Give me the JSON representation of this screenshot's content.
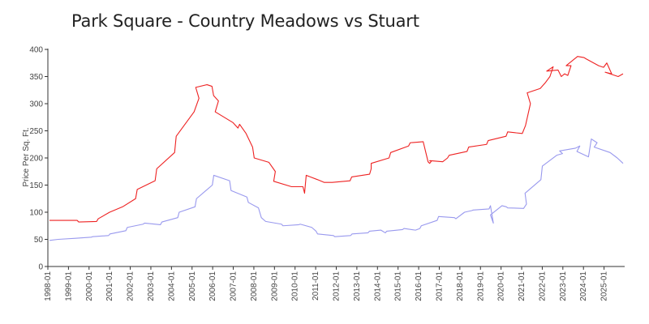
{
  "chart_data": {
    "type": "line",
    "title": "Park Square - Country Meadows vs Stuart",
    "xlabel": "",
    "ylabel": "Price Per Sq. Ft.",
    "ylim": [
      0,
      400
    ],
    "yticks": [
      0,
      50,
      100,
      150,
      200,
      250,
      300,
      350,
      400
    ],
    "x_range": [
      "1998-01",
      "2025-12"
    ],
    "x_tick_labels": [
      "1998-01",
      "1999-01",
      "2000-01",
      "2001-01",
      "2002-01",
      "2003-01",
      "2004-01",
      "2005-01",
      "2006-01",
      "2007-01",
      "2008-01",
      "2009-01",
      "2010-01",
      "2011-01",
      "2012-01",
      "2013-01",
      "2014-01",
      "2015-01",
      "2016-01",
      "2017-01",
      "2018-01",
      "2019-01",
      "2020-01",
      "2021-01",
      "2022-01",
      "2023-01",
      "2024-01",
      "2025-01"
    ],
    "grid": false,
    "legend": "none",
    "series": [
      {
        "color": "#ee2222",
        "points": [
          [
            "1998-01",
            85
          ],
          [
            "1999-06",
            85
          ],
          [
            "1999-07",
            82
          ],
          [
            "2000-06",
            83
          ],
          [
            "2001-00",
            88
          ],
          [
            "2001-02",
            100
          ],
          [
            "2001-10",
            110
          ],
          [
            "2002-06",
            125
          ],
          [
            "2003-00",
            142
          ],
          [
            "2003-06",
            158
          ],
          [
            "2004-00",
            180
          ],
          [
            "2004-06",
            210
          ],
          [
            "2005-00",
            240
          ],
          [
            "2005-06",
            285
          ],
          [
            "2005-09",
            310
          ],
          [
            "2006-00",
            330
          ],
          [
            "2006-02",
            335
          ],
          [
            "2006-05",
            332
          ],
          [
            "2006-06",
            315
          ],
          [
            "2006-09",
            305
          ],
          [
            "2007-00",
            285
          ],
          [
            "2007-06",
            265
          ],
          [
            "2007-09",
            255
          ],
          [
            "2007-10",
            262
          ],
          [
            "2008-02",
            245
          ],
          [
            "2008-06",
            220
          ],
          [
            "2009-00",
            200
          ],
          [
            "2009-04",
            192
          ],
          [
            "2009-08",
            175
          ],
          [
            "2010-00",
            157
          ],
          [
            "2010-06",
            147
          ],
          [
            "2011-01",
            147
          ],
          [
            "2011-02",
            135
          ],
          [
            "2011-03",
            168
          ],
          [
            "2011-10",
            160
          ],
          [
            "2012-02",
            155
          ],
          [
            "2013-00",
            155
          ],
          [
            "2013-06",
            158
          ],
          [
            "2014-00",
            165
          ],
          [
            "2014-06",
            170
          ],
          [
            "2014-07",
            180
          ],
          [
            "2015-00",
            190
          ],
          [
            "2015-06",
            200
          ],
          [
            "2016-00",
            210
          ],
          [
            "2016-06",
            222
          ],
          [
            "2017-00",
            228
          ],
          [
            "2017-03",
            230
          ],
          [
            "2017-06",
            193
          ],
          [
            "2017-07",
            190
          ],
          [
            "2017-08",
            194
          ],
          [
            "2018-00",
            195
          ],
          [
            "2018-03",
            193
          ],
          [
            "2018-06",
            200
          ],
          [
            "2019-00",
            205
          ],
          [
            "2019-06",
            212
          ],
          [
            "2020-00",
            220
          ],
          [
            "2020-06",
            225
          ],
          [
            "2021-00",
            232
          ],
          [
            "2021-06",
            240
          ],
          [
            "2022-00",
            248
          ],
          [
            "2022-04",
            245
          ],
          [
            "2022-06",
            260
          ],
          [
            "2022-09",
            300
          ],
          [
            "2023-00",
            320
          ],
          [
            "2023-03",
            328
          ],
          [
            "2023-06",
            338
          ],
          [
            "2023-09",
            350
          ],
          [
            "2023-11",
            368
          ],
          [
            "2024-00",
            360
          ],
          [
            "2024-02",
            362
          ],
          [
            "2024-04",
            350
          ],
          [
            "2024-06",
            355
          ],
          [
            "2024-08",
            352
          ],
          [
            "2024-10",
            370
          ],
          [
            "2025-00",
            370
          ],
          [
            "2025-02",
            387
          ],
          [
            "2025-06",
            385
          ],
          [
            "2026-00",
            383
          ],
          [
            "2026-03",
            370
          ],
          [
            "2026-06",
            367
          ],
          [
            "2026-08",
            375
          ],
          [
            "2026-11",
            355
          ],
          [
            "2027-00",
            358
          ],
          [
            "2027-03",
            350
          ],
          [
            "2027-06",
            355
          ]
        ]
      },
      {
        "color": "#9999ee",
        "points": [
          [
            "1998-01",
            48
          ],
          [
            "1999-00",
            50
          ],
          [
            "2000-00",
            52
          ],
          [
            "2000-06",
            54
          ],
          [
            "2001-00",
            55
          ],
          [
            "2001-06",
            57
          ],
          [
            "2002-00",
            60
          ],
          [
            "2002-06",
            66
          ],
          [
            "2003-00",
            72
          ],
          [
            "2003-06",
            78
          ],
          [
            "2004-00",
            80
          ],
          [
            "2004-06",
            77
          ],
          [
            "2005-00",
            82
          ],
          [
            "2005-06",
            90
          ],
          [
            "2006-00",
            100
          ],
          [
            "2006-06",
            110
          ],
          [
            "2007-00",
            125
          ],
          [
            "2007-06",
            150
          ],
          [
            "2008-00",
            168
          ],
          [
            "2008-06",
            158
          ],
          [
            "2009-00",
            140
          ],
          [
            "2009-06",
            128
          ],
          [
            "2010-00",
            118
          ],
          [
            "2010-02",
            108
          ],
          [
            "2010-04",
            90
          ],
          [
            "2011-00",
            83
          ],
          [
            "2011-06",
            78
          ],
          [
            "2012-00",
            75
          ],
          [
            "2012-06",
            77
          ],
          [
            "2013-00",
            78
          ],
          [
            "2013-03",
            72
          ],
          [
            "2013-06",
            65
          ],
          [
            "2014-00",
            60
          ],
          [
            "2014-06",
            57
          ],
          [
            "2015-00",
            55
          ],
          [
            "2015-06",
            57
          ],
          [
            "2016-00",
            60
          ],
          [
            "2016-06",
            62
          ],
          [
            "2017-00",
            65
          ],
          [
            "2017-03",
            67
          ],
          [
            "2017-06",
            62
          ],
          [
            "2018-00",
            65
          ],
          [
            "2018-06",
            68
          ],
          [
            "2019-00",
            70
          ],
          [
            "2019-03",
            67
          ],
          [
            "2019-06",
            70
          ],
          [
            "2020-00",
            75
          ],
          [
            "2020-06",
            85
          ],
          [
            "2021-00",
            92
          ],
          [
            "2021-06",
            90
          ],
          [
            "2022-00",
            88
          ],
          [
            "2022-01",
            100
          ],
          [
            "2022-06",
            103
          ],
          [
            "2023-00",
            104
          ],
          [
            "2023-06",
            106
          ],
          [
            "2023-07",
            112
          ],
          [
            "2023-09",
            80
          ],
          [
            "2024-00",
            95
          ],
          [
            "2024-03",
            112
          ],
          [
            "2024-06",
            110
          ],
          [
            "2025-00",
            108
          ],
          [
            "2025-06",
            107
          ],
          [
            "2025-08",
            115
          ],
          [
            "2026-00",
            135
          ],
          [
            "2026-06",
            160
          ],
          [
            "2027-00",
            185
          ],
          [
            "2027-05",
            205
          ],
          [
            "2027-09",
            208
          ],
          [
            "2028-00",
            213
          ],
          [
            "2028-06",
            218
          ],
          [
            "2028-09",
            222
          ],
          [
            "2029-00",
            212
          ],
          [
            "2029-03",
            202
          ],
          [
            "2029-05",
            235
          ],
          [
            "2029-09",
            228
          ],
          [
            "2030-00",
            220
          ],
          [
            "2030-06",
            210
          ],
          [
            "2030-11",
            200
          ],
          [
            "2031-03",
            190
          ]
        ]
      }
    ]
  }
}
